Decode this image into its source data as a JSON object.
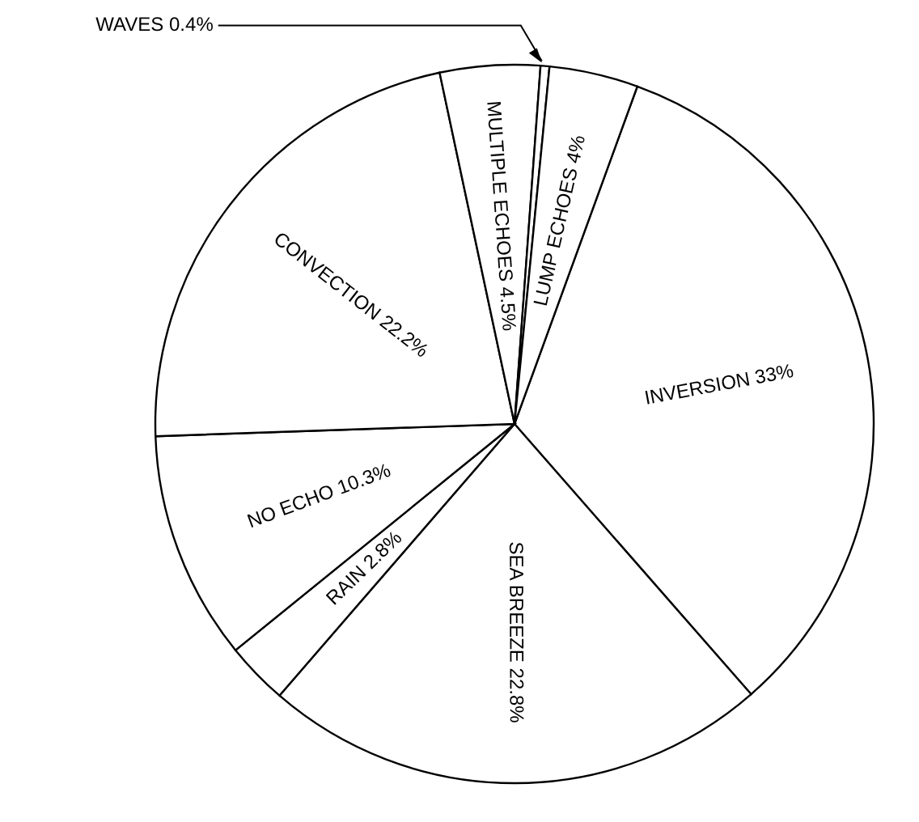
{
  "chart_data": {
    "type": "pie",
    "categories": [
      "INVERSION",
      "SEA BREEZE",
      "RAIN",
      "NO ECHO",
      "CONVECTION",
      "MULTIPLE ECHOES",
      "WAVES",
      "LUMP ECHOES"
    ],
    "values": [
      33,
      22.8,
      2.8,
      10.3,
      22.2,
      4.5,
      0.4,
      4
    ],
    "value_labels": [
      "33%",
      "22.8%",
      "2.8%",
      "10.3%",
      "22.2%",
      "4.5%",
      "0.4%",
      "4%"
    ],
    "colors": [
      "#ffffff",
      "#ffffff",
      "#ffffff",
      "#ffffff",
      "#ffffff",
      "#ffffff",
      "#ffffff",
      "#ffffff"
    ]
  }
}
